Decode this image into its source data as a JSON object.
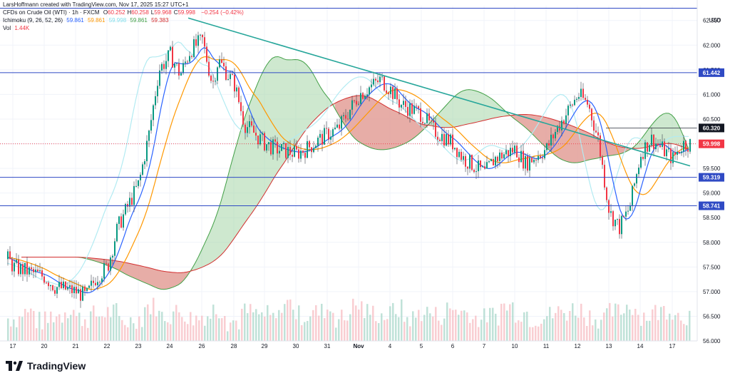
{
  "credit": "LarsHoffmann created with TradingView.com, Nov 17, 2025 15:27 UTC+1",
  "legend": {
    "symbol": "CFDs on Crude Oil (WTI) · 1h · FXCM",
    "ohlc": [
      {
        "k": "O",
        "v": "60.252"
      },
      {
        "k": "H",
        "v": "60.258"
      },
      {
        "k": "L",
        "v": "59.968"
      },
      {
        "k": "C",
        "v": "59.998"
      }
    ],
    "change": "−0.254 (−0.42%)",
    "ichimoku_label": "Ichimoku (9, 26, 52, 26)",
    "ichimoku_values": [
      "59.861",
      "59.861",
      "59.998",
      "59.861",
      "59.383"
    ],
    "vol_label": "Vol",
    "vol_value": "1.44K"
  },
  "brand": "TradingView",
  "chart_data": {
    "type": "line",
    "currency": "USD",
    "y_ticks": [
      "56.000",
      "56.500",
      "57.000",
      "57.500",
      "58.000",
      "58.500",
      "59.000",
      "59.500",
      "60.000",
      "60.500",
      "61.000",
      "61.500",
      "62.000",
      "62.500"
    ],
    "ylim": [
      56.0,
      62.8
    ],
    "x_ticks": [
      "17",
      "20",
      "21",
      "22",
      "23",
      "24",
      "26",
      "28",
      "29",
      "30",
      "31",
      "Nov",
      "4",
      "5",
      "6",
      "7",
      "10",
      "11",
      "12",
      "13",
      "14",
      "17"
    ],
    "price_labels": [
      {
        "value": 61.442,
        "text": "61.442",
        "kind": "level"
      },
      {
        "value": 60.32,
        "text": "60.320",
        "kind": "level"
      },
      {
        "value": 59.998,
        "text": "59.998",
        "kind": "last"
      },
      {
        "value": 59.319,
        "text": "59.319",
        "kind": "level"
      },
      {
        "value": 58.741,
        "text": "58.741",
        "kind": "level"
      }
    ],
    "level_line_values": [
      62.75,
      61.442,
      59.319,
      58.741
    ],
    "trendline": {
      "from": {
        "x": "Oct 25",
        "y": 62.55
      },
      "to": {
        "x": "Nov 17",
        "y": 59.55
      }
    },
    "price_path": [
      [
        "Oct 16",
        57.7
      ],
      [
        "Oct 17",
        57.5
      ],
      [
        "Oct 20",
        57.3
      ],
      [
        "Oct 20",
        57.1
      ],
      [
        "Oct 21",
        57.0
      ],
      [
        "Oct 21",
        56.9
      ],
      [
        "Oct 21",
        57.3
      ],
      [
        "Oct 22",
        57.5
      ],
      [
        "Oct 22",
        58.3
      ],
      [
        "Oct 23",
        59.2
      ],
      [
        "Oct 23",
        60.2
      ],
      [
        "Oct 23",
        61.5
      ],
      [
        "Oct 24",
        61.8
      ],
      [
        "Oct 24",
        61.4
      ],
      [
        "Oct 24",
        61.9
      ],
      [
        "Oct 26",
        62.1
      ],
      [
        "Oct 26",
        61.2
      ],
      [
        "Oct 27",
        61.7
      ],
      [
        "Oct 28",
        61.2
      ],
      [
        "Oct 28",
        60.4
      ],
      [
        "Oct 29",
        60.0
      ],
      [
        "Oct 29",
        59.9
      ],
      [
        "Oct 30",
        59.8
      ],
      [
        "Oct 30",
        59.9
      ],
      [
        "Oct 31",
        60.2
      ],
      [
        "Oct 31",
        60.3
      ],
      [
        "Nov 1",
        61.0
      ],
      [
        "Nov 3",
        61.3
      ],
      [
        "Nov 3",
        61.1
      ],
      [
        "Nov 4",
        60.8
      ],
      [
        "Nov 5",
        60.6
      ],
      [
        "Nov 5",
        60.3
      ],
      [
        "Nov 6",
        60.0
      ],
      [
        "Nov 6",
        59.7
      ],
      [
        "Nov 7",
        59.4
      ],
      [
        "Nov 7",
        59.7
      ],
      [
        "Nov 10",
        59.9
      ],
      [
        "Nov 10",
        59.6
      ],
      [
        "Nov 11",
        59.9
      ],
      [
        "Nov 11",
        60.3
      ],
      [
        "Nov 12",
        61.0
      ],
      [
        "Nov 12",
        60.8
      ],
      [
        "Nov 12",
        60.1
      ],
      [
        "Nov 13",
        58.6
      ],
      [
        "Nov 13",
        58.3
      ],
      [
        "Nov 13",
        58.7
      ],
      [
        "Nov 14",
        59.8
      ],
      [
        "Nov 14",
        60.1
      ],
      [
        "Nov 17",
        59.7
      ],
      [
        "Nov 17",
        59.998
      ]
    ],
    "volume_series": [
      0.4,
      0.6,
      0.3,
      0.5,
      0.7,
      0.4,
      0.5,
      0.6,
      0.3,
      0.4,
      0.8,
      0.5,
      0.6,
      0.4,
      0.5,
      0.7,
      0.3,
      0.6,
      0.5,
      0.4,
      0.9,
      0.5,
      0.6,
      0.7,
      0.4,
      0.8,
      0.6,
      0.5,
      0.7,
      0.4,
      0.6,
      0.5,
      0.7,
      0.6,
      0.4,
      0.5,
      0.8,
      0.6,
      0.4,
      0.5,
      0.6,
      0.7,
      0.5,
      0.4,
      0.6,
      0.8,
      0.5,
      0.6,
      0.7,
      0.5
    ],
    "colors": {
      "up": "#089981",
      "down": "#f23645",
      "conversion": "#2962ff",
      "base": "#ff9800",
      "lagging": "#b2ebf2",
      "cloud_up": "#a5d6a7",
      "cloud_down": "#ef9a9a",
      "span_a": "#43a047",
      "span_b": "#d32f2f",
      "trendline": "#26a69a",
      "level": "#2f4ac4",
      "last_price": "#f23645"
    }
  }
}
